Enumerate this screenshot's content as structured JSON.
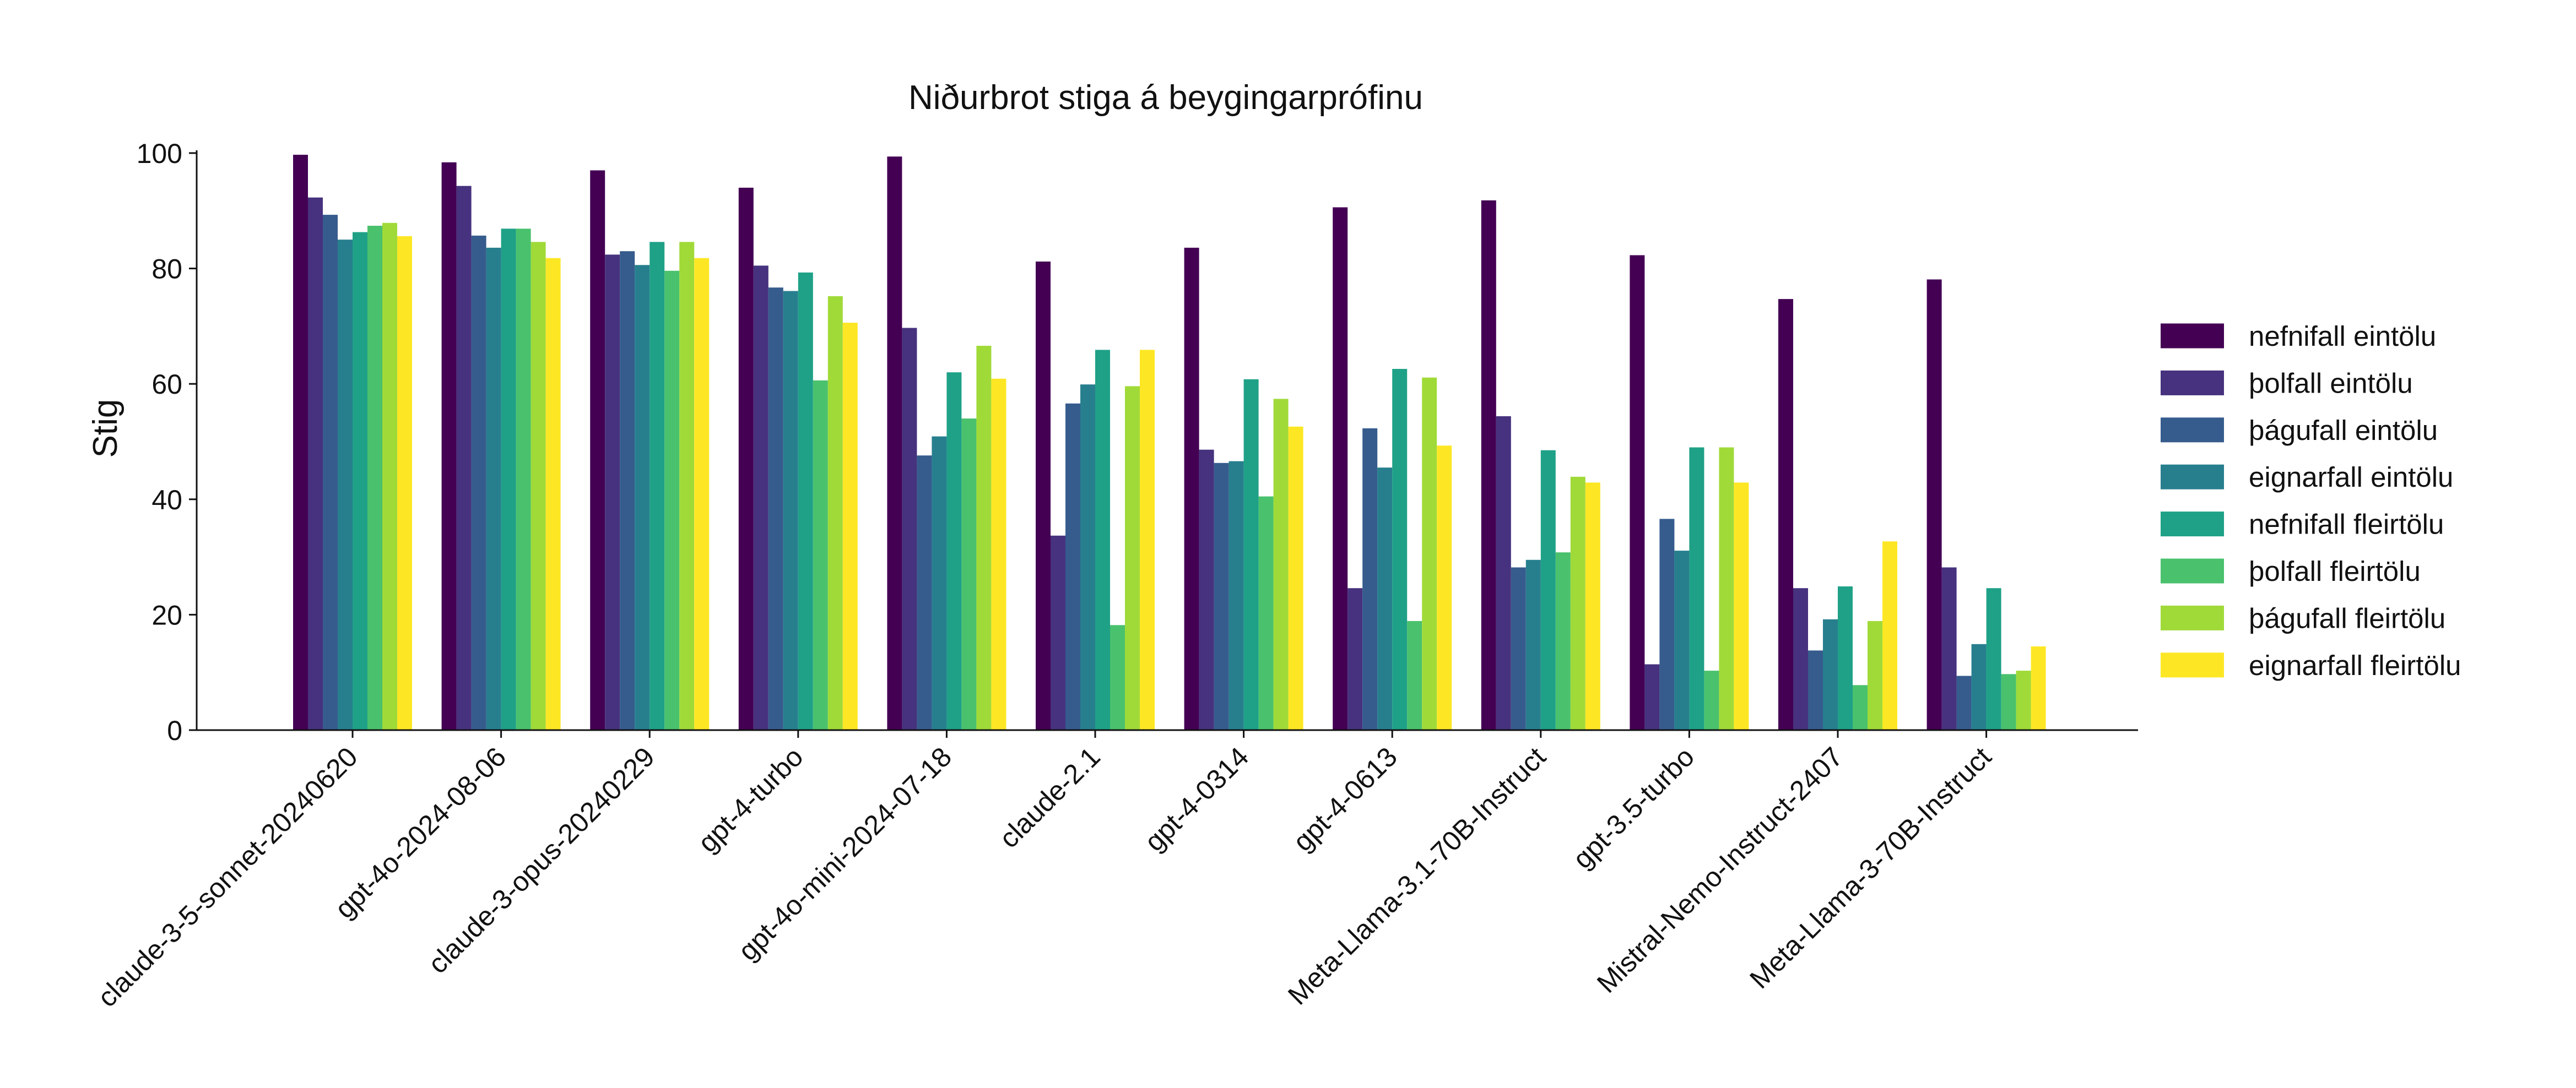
{
  "chart_data": {
    "type": "bar",
    "title": "Niðurbrot stiga á beygingarprófinu",
    "xlabel": "",
    "ylabel": "Stig",
    "ylim": [
      0,
      100
    ],
    "yticks": [
      "0",
      "20",
      "40",
      "60",
      "80",
      "100"
    ],
    "grid": false,
    "legend_position": "right",
    "categories": [
      "claude-3-5-sonnet-20240620",
      "gpt-4o-2024-08-06",
      "claude-3-opus-20240229",
      "gpt-4-turbo",
      "gpt-4o-mini-2024-07-18",
      "claude-2.1",
      "gpt-4-0314",
      "gpt-4-0613",
      "Meta-Llama-3.1-70B-Instruct",
      "gpt-3.5-turbo",
      "Mistral-Nemo-Instruct-2407",
      "Meta-Llama-3-70B-Instruct"
    ],
    "series": [
      {
        "name": "nefnifall eintölu",
        "color": "#440154",
        "values": [
          99.7,
          98.4,
          97.0,
          94.0,
          99.4,
          81.2,
          83.6,
          90.6,
          91.8,
          82.3,
          74.7,
          78.1
        ]
      },
      {
        "name": "þolfall eintölu",
        "color": "#46327e",
        "values": [
          92.3,
          94.3,
          82.4,
          80.5,
          69.7,
          33.7,
          48.6,
          24.6,
          54.4,
          11.4,
          24.6,
          28.2
        ]
      },
      {
        "name": "þágufall eintölu",
        "color": "#365c8d",
        "values": [
          89.3,
          85.7,
          83.0,
          76.7,
          47.6,
          56.6,
          46.3,
          52.3,
          28.2,
          36.6,
          13.8,
          9.4
        ]
      },
      {
        "name": "eignarfall eintölu",
        "color": "#277f8e",
        "values": [
          85.0,
          83.6,
          80.6,
          76.1,
          50.9,
          59.9,
          46.6,
          45.5,
          29.5,
          31.1,
          19.2,
          14.9
        ]
      },
      {
        "name": "nefnifall fleirtölu",
        "color": "#1fa187",
        "values": [
          86.3,
          86.9,
          84.6,
          79.3,
          62.0,
          65.9,
          60.8,
          62.6,
          48.5,
          49.0,
          24.9,
          24.6
        ]
      },
      {
        "name": "þolfall fleirtölu",
        "color": "#4ac16d",
        "values": [
          87.4,
          86.9,
          79.6,
          60.6,
          54.0,
          18.2,
          40.5,
          18.9,
          30.8,
          10.3,
          7.8,
          9.7
        ]
      },
      {
        "name": "þágufall fleirtölu",
        "color": "#a0da39",
        "values": [
          87.9,
          84.6,
          84.6,
          75.2,
          66.6,
          59.6,
          57.4,
          61.1,
          43.9,
          49.0,
          18.9,
          10.3
        ]
      },
      {
        "name": "eignarfall fleirtölu",
        "color": "#fde725",
        "values": [
          85.6,
          81.8,
          81.8,
          70.6,
          60.9,
          65.9,
          52.6,
          49.3,
          42.9,
          42.9,
          32.7,
          14.5
        ]
      }
    ]
  }
}
